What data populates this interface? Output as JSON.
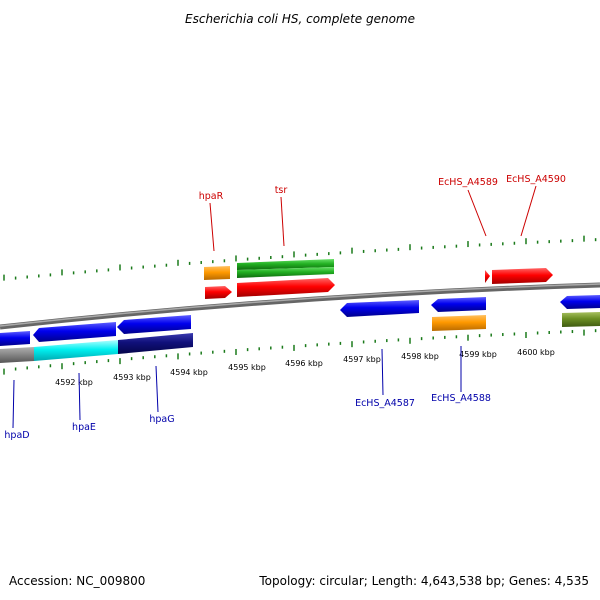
{
  "title": "Escherichia coli HS, complete genome",
  "footer": {
    "accession": "Accession: NC_009800",
    "summary": "Topology: circular; Length: 4,643,538 bp; Genes: 4,535"
  },
  "scale": {
    "tick_labels": [
      "4592 kbp",
      "4593 kbp",
      "4594 kbp",
      "4595 kbp",
      "4596 kbp",
      "4597 kbp",
      "4598 kbp",
      "4599 kbp",
      "4600 kbp"
    ]
  },
  "genes": {
    "hpaR": "hpaR",
    "tsr": "tsr",
    "EcHS_A4589": "EcHS_A4589",
    "EcHS_A4590": "EcHS_A4590",
    "hpaD": "hpaD",
    "hpaE": "hpaE",
    "hpaG": "hpaG",
    "EcHS_A4587": "EcHS_A4587",
    "EcHS_A4588": "EcHS_A4588"
  },
  "colors": {
    "forward_label": "#cc0000",
    "reverse_label": "#0000aa",
    "tick": "#1a7a1a",
    "backbone": "#888888"
  }
}
